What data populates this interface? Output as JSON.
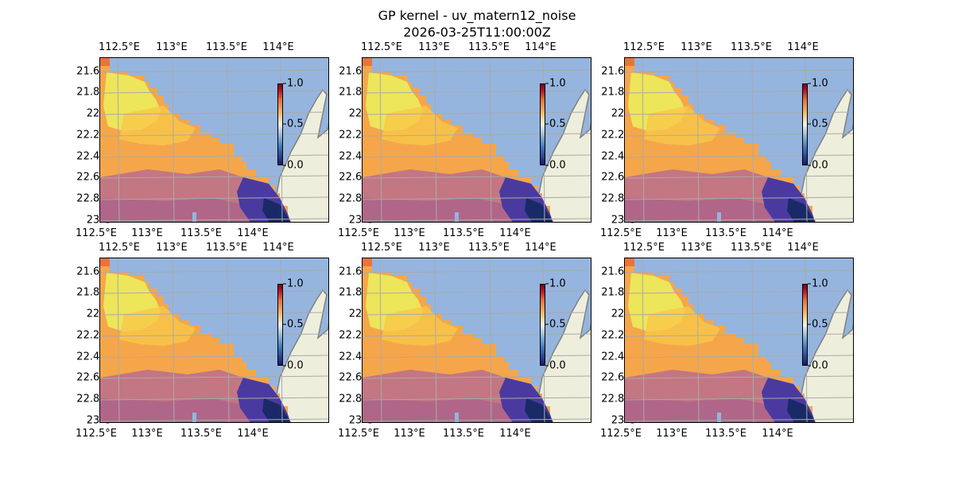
{
  "title_line1": "GP kernel - uv_matern12_noise",
  "title_line2": "2026-03-25T11:00:00Z",
  "lon_labels": [
    "112.5°E",
    "113°E",
    "113.5°E",
    "114°E"
  ],
  "lat_labels": [
    "21.6°S",
    "21.8°S",
    "22°S",
    "22.2°S",
    "22.4°S",
    "22.6°S",
    "22.8°S",
    "23°S"
  ],
  "colorbar_labels": [
    "1.0",
    "0.5",
    "0.0"
  ],
  "colors": {
    "ocean": "#95b5de",
    "land": "#eeeedc",
    "coast": "#808080",
    "grid": "#aaaaaa"
  },
  "panel_count": 6
}
